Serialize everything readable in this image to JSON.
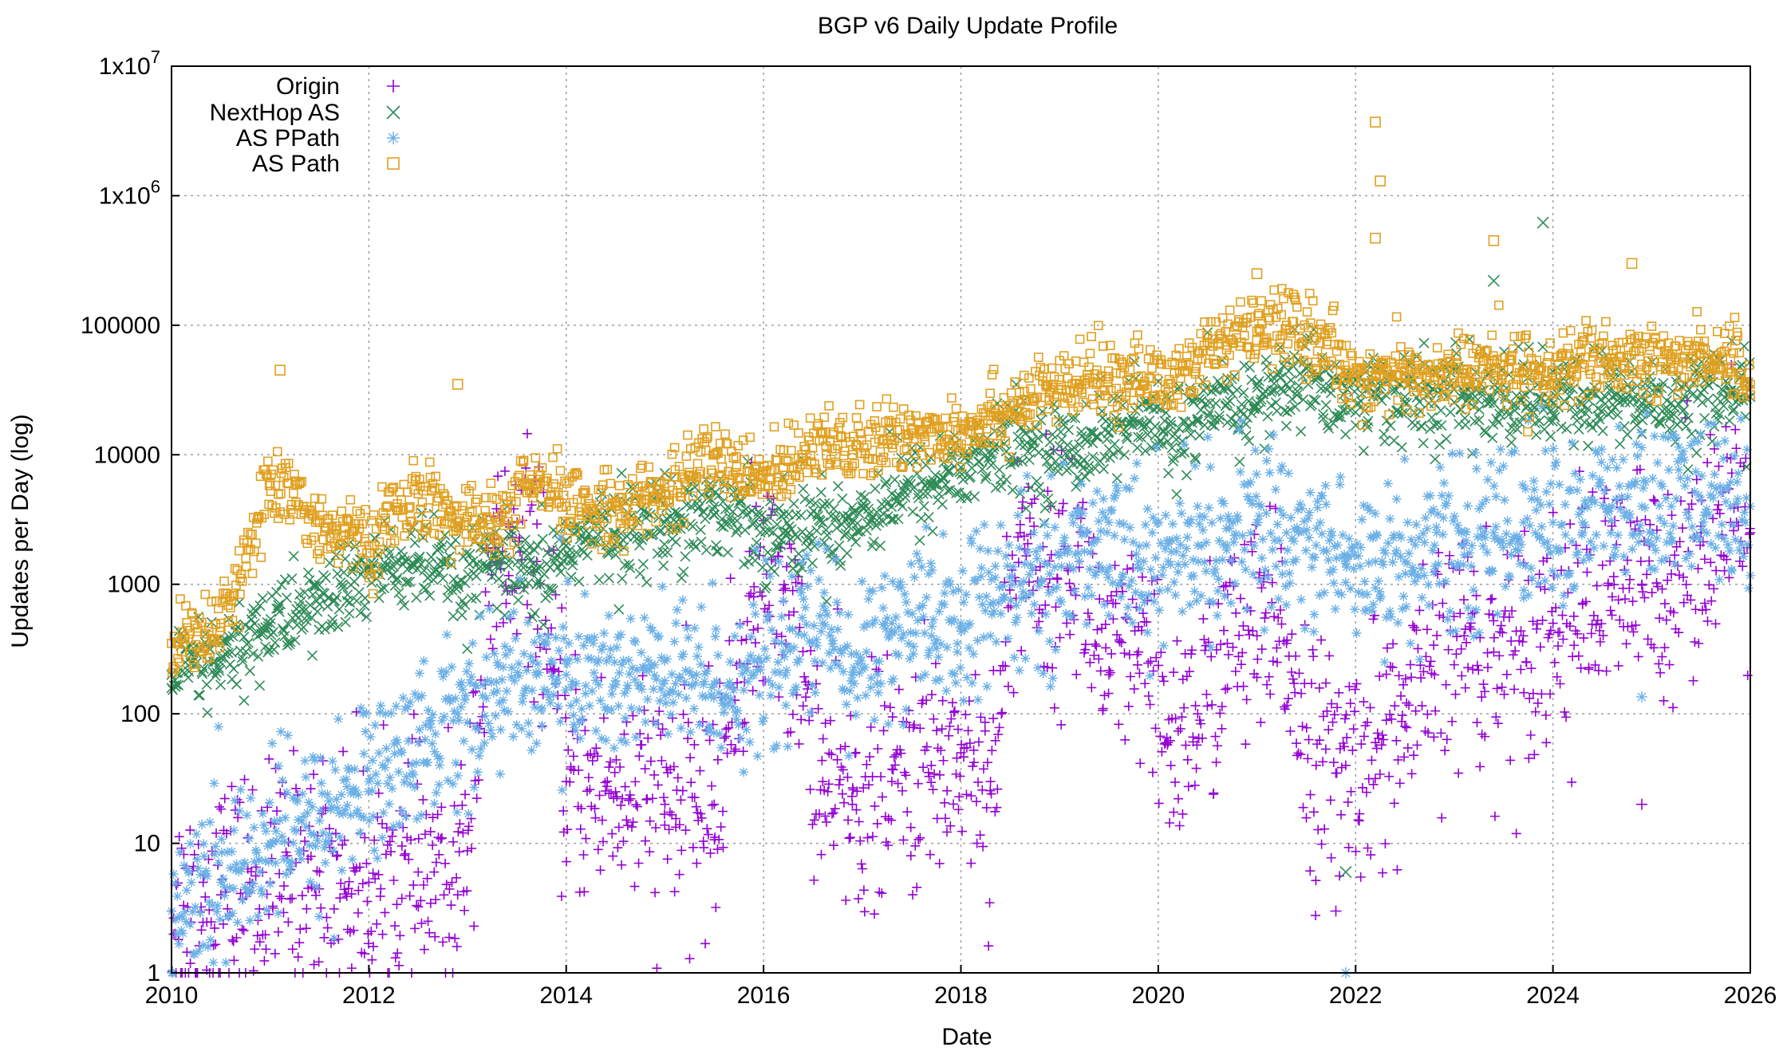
{
  "chart_data": {
    "type": "scatter",
    "title": "BGP v6 Daily Update Profile",
    "xlabel": "Date",
    "ylabel": "Updates per Day (log)",
    "xlim": [
      2010,
      2026
    ],
    "ylim": [
      1,
      10000000
    ],
    "yscale": "log",
    "grid": true,
    "legend_position": "top-left",
    "x_ticks": [
      "2010",
      "2012",
      "2014",
      "2016",
      "2018",
      "2020",
      "2022",
      "2024",
      "2026"
    ],
    "y_ticks": [
      {
        "value": 1,
        "label": "1"
      },
      {
        "value": 10,
        "label": "10"
      },
      {
        "value": 100,
        "label": "100"
      },
      {
        "value": 1000,
        "label": "1000"
      },
      {
        "value": 10000,
        "label": "10000"
      },
      {
        "value": 100000,
        "label": "100000"
      },
      {
        "value": 1000000,
        "label": "1x10",
        "sup": "6"
      },
      {
        "value": 10000000,
        "label": "1x10",
        "sup": "7"
      }
    ],
    "series": [
      {
        "name": "Origin",
        "marker": "plus",
        "color": "#9400d3",
        "x": [
          2010.0,
          2010.5,
          2011.0,
          2011.5,
          2012.0,
          2012.5,
          2012.9,
          2013.3,
          2013.7,
          2014.0,
          2014.5,
          2015.0,
          2015.5,
          2015.9,
          2016.2,
          2016.6,
          2016.9,
          2017.3,
          2017.7,
          2018.0,
          2018.3,
          2018.6,
          2018.9,
          2019.2,
          2019.5,
          2019.8,
          2020.1,
          2020.4,
          2020.7,
          2021.0,
          2021.3,
          2021.6,
          2021.9,
          2022.2,
          2022.5,
          2022.8,
          2023.1,
          2023.4,
          2023.7,
          2024.0,
          2024.3,
          2024.6,
          2024.9,
          2025.2,
          2025.5,
          2025.8,
          2026.0
        ],
        "y": [
          3,
          4,
          5,
          6,
          5,
          6,
          4,
          1500,
          1500,
          30,
          25,
          20,
          20,
          800,
          900,
          30,
          20,
          30,
          40,
          50,
          30,
          2500,
          1100,
          1500,
          200,
          300,
          60,
          100,
          350,
          400,
          350,
          40,
          40,
          60,
          80,
          200,
          400,
          300,
          400,
          500,
          700,
          800,
          1000,
          1200,
          2500,
          3000,
          2500
        ]
      },
      {
        "name": "NextHop AS",
        "marker": "cross",
        "color": "#2e8b57",
        "x": [
          2010.0,
          2010.5,
          2011.0,
          2011.5,
          2012.0,
          2012.5,
          2012.9,
          2013.3,
          2013.7,
          2014.0,
          2014.5,
          2015.0,
          2015.5,
          2015.9,
          2016.2,
          2016.6,
          2016.9,
          2017.3,
          2017.7,
          2018.0,
          2018.3,
          2018.6,
          2018.9,
          2019.2,
          2019.5,
          2019.8,
          2020.1,
          2020.4,
          2020.7,
          2021.0,
          2021.3,
          2021.6,
          2021.9,
          2022.2,
          2022.5,
          2022.8,
          2023.1,
          2023.4,
          2023.7,
          2024.0,
          2024.3,
          2024.6,
          2024.9,
          2025.2,
          2025.5,
          2025.8,
          2026.0
        ],
        "y": [
          200,
          250,
          500,
          700,
          1200,
          1500,
          1000,
          1500,
          1000,
          2000,
          2500,
          3000,
          4000,
          3000,
          2500,
          3000,
          3000,
          5000,
          6000,
          8000,
          10000,
          12000,
          10000,
          12000,
          15000,
          18000,
          15000,
          18000,
          25000,
          25000,
          35000,
          40000,
          25000,
          30000,
          28000,
          25000,
          30000,
          25000,
          28000,
          25000,
          25000,
          28000,
          25000,
          25000,
          30000,
          30000,
          28000
        ]
      },
      {
        "name": "AS PPath",
        "marker": "star",
        "color": "#6cb0e6",
        "x": [
          2010.0,
          2010.5,
          2011.0,
          2011.5,
          2012.0,
          2012.5,
          2012.9,
          2013.3,
          2013.7,
          2014.0,
          2014.5,
          2015.0,
          2015.5,
          2015.9,
          2016.2,
          2016.6,
          2016.9,
          2017.3,
          2017.7,
          2018.0,
          2018.3,
          2018.6,
          2018.9,
          2019.2,
          2019.5,
          2019.8,
          2020.1,
          2020.4,
          2020.7,
          2021.0,
          2021.3,
          2021.6,
          2021.9,
          2022.2,
          2022.5,
          2022.8,
          2023.1,
          2023.4,
          2023.7,
          2024.0,
          2024.3,
          2024.6,
          2024.9,
          2025.2,
          2025.5,
          2025.8,
          2026.0
        ],
        "y": [
          3,
          5,
          10,
          15,
          30,
          60,
          100,
          150,
          200,
          200,
          180,
          180,
          170,
          200,
          300,
          500,
          200,
          500,
          400,
          500,
          700,
          1000,
          1200,
          1500,
          3000,
          1500,
          1500,
          2000,
          2000,
          3000,
          2500,
          2000,
          1500,
          1500,
          1500,
          2000,
          2000,
          2500,
          3000,
          3000,
          3000,
          4000,
          4000,
          4000,
          4500,
          4000,
          4000
        ]
      },
      {
        "name": "AS Path",
        "marker": "square",
        "color": "#e0a020",
        "x": [
          2010.0,
          2010.5,
          2011.0,
          2011.5,
          2012.0,
          2012.5,
          2012.9,
          2013.3,
          2013.7,
          2014.0,
          2014.5,
          2015.0,
          2015.5,
          2015.9,
          2016.2,
          2016.6,
          2016.9,
          2017.3,
          2017.7,
          2018.0,
          2018.3,
          2018.6,
          2018.9,
          2019.2,
          2019.5,
          2019.8,
          2020.1,
          2020.4,
          2020.7,
          2021.0,
          2021.3,
          2021.6,
          2021.9,
          2022.2,
          2022.5,
          2022.8,
          2023.1,
          2023.4,
          2023.7,
          2024.0,
          2024.3,
          2024.6,
          2024.9,
          2025.2,
          2025.5,
          2025.8,
          2026.0
        ],
        "y": [
          350,
          500,
          6000,
          3000,
          2000,
          5000,
          3000,
          3000,
          6000,
          4000,
          4000,
          5000,
          10000,
          6000,
          8000,
          15000,
          10000,
          13000,
          15000,
          16000,
          20000,
          25000,
          30000,
          35000,
          40000,
          40000,
          35000,
          55000,
          70000,
          90000,
          100000,
          80000,
          45000,
          40000,
          40000,
          40000,
          45000,
          45000,
          45000,
          45000,
          50000,
          50000,
          50000,
          55000,
          60000,
          55000,
          35000
        ]
      }
    ],
    "outliers": [
      {
        "series": "AS Path",
        "x": 2011.1,
        "y": 45000
      },
      {
        "series": "AS Path",
        "x": 2012.9,
        "y": 35000
      },
      {
        "series": "AS Path",
        "x": 2021.0,
        "y": 250000
      },
      {
        "series": "AS Path",
        "x": 2022.2,
        "y": 3700000
      },
      {
        "series": "AS Path",
        "x": 2022.25,
        "y": 1300000
      },
      {
        "series": "AS Path",
        "x": 2022.2,
        "y": 470000
      },
      {
        "series": "AS Path",
        "x": 2023.4,
        "y": 450000
      },
      {
        "series": "AS Path",
        "x": 2024.8,
        "y": 300000
      },
      {
        "series": "NextHop AS",
        "x": 2023.9,
        "y": 620000
      },
      {
        "series": "NextHop AS",
        "x": 2023.4,
        "y": 220000
      },
      {
        "series": "NextHop AS",
        "x": 2021.9,
        "y": 6
      },
      {
        "series": "AS PPath",
        "x": 2021.9,
        "y": 1
      },
      {
        "series": "AS PPath",
        "x": 2024.9,
        "y": 135
      },
      {
        "series": "Origin",
        "x": 2021.8,
        "y": 3
      },
      {
        "series": "Origin",
        "x": 2024.9,
        "y": 20
      }
    ]
  }
}
